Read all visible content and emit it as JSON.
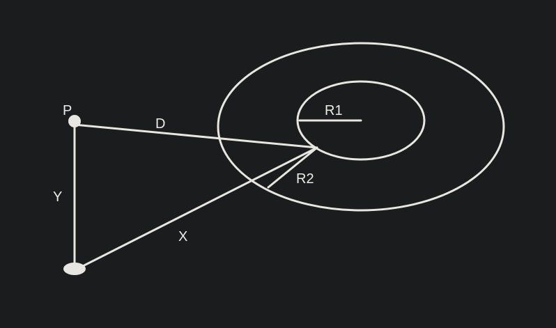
{
  "colors": {
    "background": "#1b1c1e",
    "stroke": "#e8e6e1",
    "text": "#ecebe7"
  },
  "labels": {
    "p": "P",
    "d": "D",
    "y": "Y",
    "x": "X",
    "r1": "R1",
    "r2": "R2"
  }
}
